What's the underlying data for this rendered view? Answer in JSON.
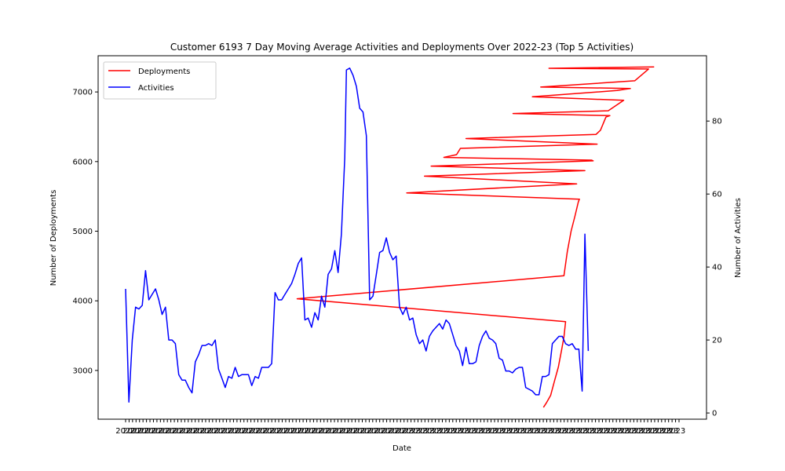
{
  "chart_data": {
    "type": "line",
    "title": "Customer 6193 7 Day Moving Average Activities and Deployments Over 2022-23 (Top 5 Activities)",
    "xlabel": "Date",
    "ylabel_left": "Number of Deployments",
    "ylabel_right": "Number of Activities",
    "yticks_left": [
      3000,
      4000,
      5000,
      6000,
      7000
    ],
    "ylim_left": [
      2300,
      7520
    ],
    "yticks_right": [
      0,
      20,
      40,
      60,
      80
    ],
    "ylim_right": [
      -1.7,
      97.9
    ],
    "x_tick_count": 160,
    "x_tick_start_label": "2022",
    "x_tick_end_label": "2023",
    "legend": {
      "position": "top-left",
      "entries": [
        "Deployments",
        "Activities"
      ]
    },
    "series": [
      {
        "name": "Deployments",
        "axis": "left",
        "color": "#ff0000",
        "points": [
          [
            0.755,
            2470
          ],
          [
            0.76,
            2530
          ],
          [
            0.768,
            2640
          ],
          [
            0.775,
            2850
          ],
          [
            0.782,
            3050
          ],
          [
            0.788,
            3300
          ],
          [
            0.792,
            3480
          ],
          [
            0.795,
            3700
          ],
          [
            0.31,
            4030
          ],
          [
            0.792,
            4360
          ],
          [
            0.798,
            4700
          ],
          [
            0.805,
            5000
          ],
          [
            0.812,
            5220
          ],
          [
            0.818,
            5420
          ],
          [
            0.82,
            5460
          ],
          [
            0.508,
            5550
          ],
          [
            0.815,
            5680
          ],
          [
            0.54,
            5790
          ],
          [
            0.83,
            5870
          ],
          [
            0.552,
            5935
          ],
          [
            0.845,
            6010
          ],
          [
            0.842,
            6020
          ],
          [
            0.575,
            6060
          ],
          [
            0.598,
            6100
          ],
          [
            0.605,
            6190
          ],
          [
            0.852,
            6250
          ],
          [
            0.615,
            6330
          ],
          [
            0.85,
            6390
          ],
          [
            0.858,
            6450
          ],
          [
            0.868,
            6640
          ],
          [
            0.875,
            6660
          ],
          [
            0.7,
            6690
          ],
          [
            0.872,
            6730
          ],
          [
            0.9,
            6880
          ],
          [
            0.735,
            6930
          ],
          [
            0.888,
            7020
          ],
          [
            0.912,
            7050
          ],
          [
            0.75,
            7070
          ],
          [
            0.92,
            7160
          ],
          [
            0.945,
            7330
          ],
          [
            0.765,
            7340
          ],
          [
            0.955,
            7360
          ]
        ]
      },
      {
        "name": "Activities",
        "axis": "right",
        "color": "#0000ff",
        "points": [
          [
            0.0,
            34
          ],
          [
            0.006,
            3
          ],
          [
            0.012,
            20
          ],
          [
            0.018,
            29
          ],
          [
            0.024,
            28.5
          ],
          [
            0.03,
            29.5
          ],
          [
            0.036,
            39
          ],
          [
            0.042,
            31
          ],
          [
            0.048,
            32.5
          ],
          [
            0.054,
            34
          ],
          [
            0.06,
            31
          ],
          [
            0.066,
            27
          ],
          [
            0.072,
            29
          ],
          [
            0.078,
            20
          ],
          [
            0.084,
            20
          ],
          [
            0.09,
            19
          ],
          [
            0.096,
            10.5
          ],
          [
            0.102,
            9
          ],
          [
            0.108,
            9
          ],
          [
            0.114,
            7
          ],
          [
            0.12,
            5.5
          ],
          [
            0.126,
            14
          ],
          [
            0.132,
            16
          ],
          [
            0.138,
            18.5
          ],
          [
            0.144,
            18.5
          ],
          [
            0.15,
            19
          ],
          [
            0.156,
            18.5
          ],
          [
            0.162,
            20
          ],
          [
            0.168,
            12
          ],
          [
            0.174,
            9.5
          ],
          [
            0.18,
            7
          ],
          [
            0.186,
            10
          ],
          [
            0.192,
            9.5
          ],
          [
            0.198,
            12.5
          ],
          [
            0.204,
            10
          ],
          [
            0.21,
            10.5
          ],
          [
            0.216,
            10.5
          ],
          [
            0.222,
            10.5
          ],
          [
            0.228,
            7.5
          ],
          [
            0.234,
            10
          ],
          [
            0.24,
            9.5
          ],
          [
            0.246,
            12.5
          ],
          [
            0.252,
            12.5
          ],
          [
            0.258,
            12.5
          ],
          [
            0.264,
            13.5
          ],
          [
            0.27,
            33
          ],
          [
            0.276,
            31
          ],
          [
            0.282,
            31
          ],
          [
            0.288,
            32.5
          ],
          [
            0.294,
            34
          ],
          [
            0.3,
            35.5
          ],
          [
            0.306,
            38
          ],
          [
            0.312,
            41
          ],
          [
            0.318,
            42.5
          ],
          [
            0.324,
            25.5
          ],
          [
            0.33,
            26
          ],
          [
            0.336,
            23.5
          ],
          [
            0.342,
            27.5
          ],
          [
            0.348,
            25.5
          ],
          [
            0.354,
            32
          ],
          [
            0.36,
            29
          ],
          [
            0.366,
            38
          ],
          [
            0.372,
            39.5
          ],
          [
            0.378,
            44.5
          ],
          [
            0.384,
            38.5
          ],
          [
            0.39,
            49
          ],
          [
            0.396,
            70
          ],
          [
            0.399,
            94
          ],
          [
            0.405,
            94.5
          ],
          [
            0.411,
            92.5
          ],
          [
            0.417,
            89.5
          ],
          [
            0.423,
            83.5
          ],
          [
            0.429,
            82.5
          ],
          [
            0.435,
            76
          ],
          [
            0.441,
            31
          ],
          [
            0.447,
            32
          ],
          [
            0.453,
            38
          ],
          [
            0.459,
            44
          ],
          [
            0.465,
            44.5
          ],
          [
            0.471,
            48
          ],
          [
            0.477,
            44
          ],
          [
            0.483,
            42
          ],
          [
            0.489,
            43
          ],
          [
            0.495,
            29
          ],
          [
            0.501,
            27
          ],
          [
            0.507,
            29
          ],
          [
            0.513,
            25.5
          ],
          [
            0.519,
            26
          ],
          [
            0.525,
            21.5
          ],
          [
            0.531,
            19
          ],
          [
            0.537,
            20
          ],
          [
            0.543,
            17
          ],
          [
            0.549,
            21
          ],
          [
            0.555,
            22.5
          ],
          [
            0.561,
            23.5
          ],
          [
            0.567,
            24.5
          ],
          [
            0.573,
            23
          ],
          [
            0.579,
            25.5
          ],
          [
            0.585,
            24.5
          ],
          [
            0.591,
            21.5
          ],
          [
            0.597,
            18.5
          ],
          [
            0.603,
            17
          ],
          [
            0.609,
            13
          ],
          [
            0.615,
            18
          ],
          [
            0.621,
            13.5
          ],
          [
            0.627,
            13.5
          ],
          [
            0.633,
            14
          ],
          [
            0.639,
            18.5
          ],
          [
            0.645,
            21
          ],
          [
            0.651,
            22.5
          ],
          [
            0.657,
            20.5
          ],
          [
            0.663,
            20
          ],
          [
            0.669,
            19
          ],
          [
            0.675,
            15
          ],
          [
            0.681,
            14.5
          ],
          [
            0.687,
            11.5
          ],
          [
            0.693,
            11.5
          ],
          [
            0.699,
            11
          ],
          [
            0.705,
            12
          ],
          [
            0.711,
            12.5
          ],
          [
            0.717,
            12.5
          ],
          [
            0.723,
            7
          ],
          [
            0.729,
            6.5
          ],
          [
            0.735,
            6
          ],
          [
            0.741,
            5
          ],
          [
            0.747,
            5
          ],
          [
            0.753,
            10
          ],
          [
            0.759,
            10
          ],
          [
            0.765,
            10.5
          ],
          [
            0.771,
            19
          ],
          [
            0.777,
            20
          ],
          [
            0.783,
            21
          ],
          [
            0.789,
            21
          ],
          [
            0.795,
            19
          ],
          [
            0.801,
            18.5
          ],
          [
            0.807,
            19
          ],
          [
            0.813,
            17.5
          ],
          [
            0.819,
            17.5
          ],
          [
            0.825,
            6
          ],
          [
            0.83,
            49
          ],
          [
            0.836,
            17
          ]
        ]
      }
    ]
  }
}
